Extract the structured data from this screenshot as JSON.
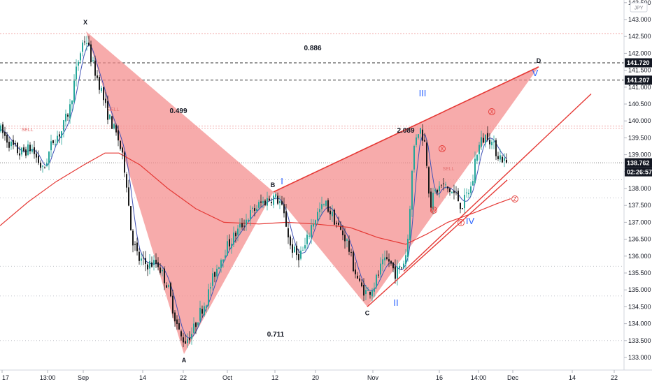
{
  "currency_badge": "JPY",
  "chart_data": {
    "type": "candlestick",
    "y_axis": {
      "range": [
        132.85,
        143.85
      ],
      "tick_labels": [
        "133.000",
        "133.500",
        "134.000",
        "134.500",
        "135.000",
        "135.500",
        "136.000",
        "136.500",
        "137.000",
        "137.500",
        "138.000",
        "138.500",
        "139.000",
        "139.500",
        "140.000",
        "140.500",
        "141.000",
        "141.500",
        "142.000",
        "142.500",
        "143.000",
        "143.500"
      ],
      "top_partial_label": "143.500"
    },
    "x_axis": {
      "tick_labels": [
        "17",
        "13:00",
        "Sep",
        "14",
        "22",
        "Oct",
        "12",
        "20",
        "Nov",
        "16",
        "14:00",
        "Dec",
        "14",
        "22"
      ]
    },
    "price_tags": [
      {
        "value": "141.720",
        "style": "black"
      },
      {
        "value": "141.207",
        "style": "black"
      },
      {
        "value": "138.762",
        "style": "black"
      },
      {
        "value": "02:26:57",
        "style": "black"
      }
    ],
    "dashed_levels": [
      141.72,
      141.207
    ],
    "current_price": 138.762,
    "harmonic_pattern": {
      "points": [
        {
          "label": "X",
          "price": 142.65
        },
        {
          "label": "A",
          "price": 133.1
        },
        {
          "label": "B",
          "price": 137.9
        },
        {
          "label": "C",
          "price": 134.5
        },
        {
          "label": "D",
          "price": 141.6
        }
      ],
      "ratios": [
        {
          "value": "0.499",
          "placement": "XAB"
        },
        {
          "value": "0.886",
          "placement": "XAD"
        },
        {
          "value": "0.711",
          "placement": "ABC"
        },
        {
          "value": "2.089",
          "placement": "BCD"
        }
      ]
    },
    "elliott_waves": [
      "I",
      "II",
      "III",
      "IV",
      "V"
    ],
    "sub_waves": [
      "W",
      "X",
      "Y",
      "X",
      "Z"
    ],
    "sell_markers": [
      "SELL",
      "SELL",
      "SELL"
    ],
    "series": [
      {
        "name": "",
        "kind": "candles"
      },
      {
        "name": "",
        "kind": "moving-average-fast",
        "color": "#3f51b5"
      },
      {
        "name": "",
        "kind": "moving-average-slow",
        "color": "#e53935"
      }
    ],
    "colors": {
      "bull": "#26a69a",
      "bear": "#1a1a1a",
      "pattern_fill": "#f48a8a",
      "trendline": "#e53935",
      "wave": "#2962ff"
    },
    "grid": false
  }
}
